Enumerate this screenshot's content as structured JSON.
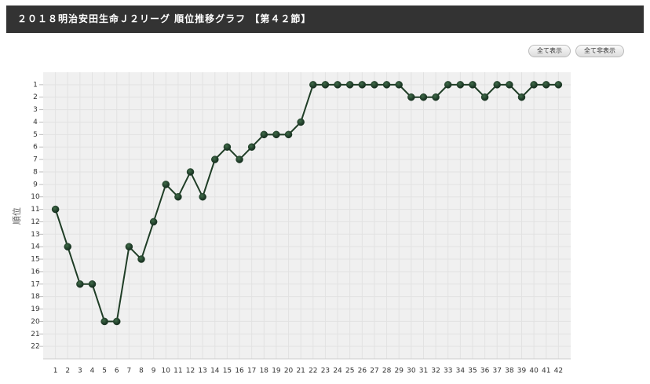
{
  "header": {
    "title": "２０１８明治安田生命Ｊ２リーグ 順位推移グラフ 【第４２節】"
  },
  "buttons": [
    "全て表示",
    "全て非表示"
  ],
  "chart_data": {
    "type": "line",
    "ylabel": "順位",
    "x": [
      1,
      2,
      3,
      4,
      5,
      6,
      7,
      8,
      9,
      10,
      11,
      12,
      13,
      14,
      15,
      16,
      17,
      18,
      19,
      20,
      21,
      22,
      23,
      24,
      25,
      26,
      27,
      28,
      29,
      30,
      31,
      32,
      33,
      34,
      35,
      36,
      37,
      38,
      39,
      40,
      41,
      42
    ],
    "values": [
      11,
      14,
      17,
      17,
      20,
      20,
      14,
      15,
      12,
      9,
      10,
      8,
      10,
      7,
      6,
      7,
      6,
      5,
      5,
      5,
      4,
      1,
      1,
      1,
      1,
      1,
      1,
      1,
      1,
      2,
      2,
      2,
      1,
      1,
      1,
      2,
      1,
      1,
      2,
      1,
      1,
      1
    ],
    "color": "#1f3d26",
    "xlim": [
      0,
      43
    ],
    "xticks": [
      1,
      2,
      3,
      4,
      5,
      6,
      7,
      8,
      9,
      10,
      11,
      12,
      13,
      14,
      15,
      16,
      17,
      18,
      19,
      20,
      21,
      22,
      23,
      24,
      25,
      26,
      27,
      28,
      29,
      30,
      31,
      32,
      33,
      34,
      35,
      36,
      37,
      38,
      39,
      40,
      41,
      42
    ],
    "ylim": [
      23,
      0
    ],
    "yticks": [
      1,
      2,
      3,
      4,
      5,
      6,
      7,
      8,
      9,
      10,
      11,
      12,
      13,
      14,
      15,
      16,
      17,
      18,
      19,
      20,
      21,
      22
    ],
    "grid": true,
    "highlight_x": 42,
    "highlight_color": "#cc0000"
  }
}
